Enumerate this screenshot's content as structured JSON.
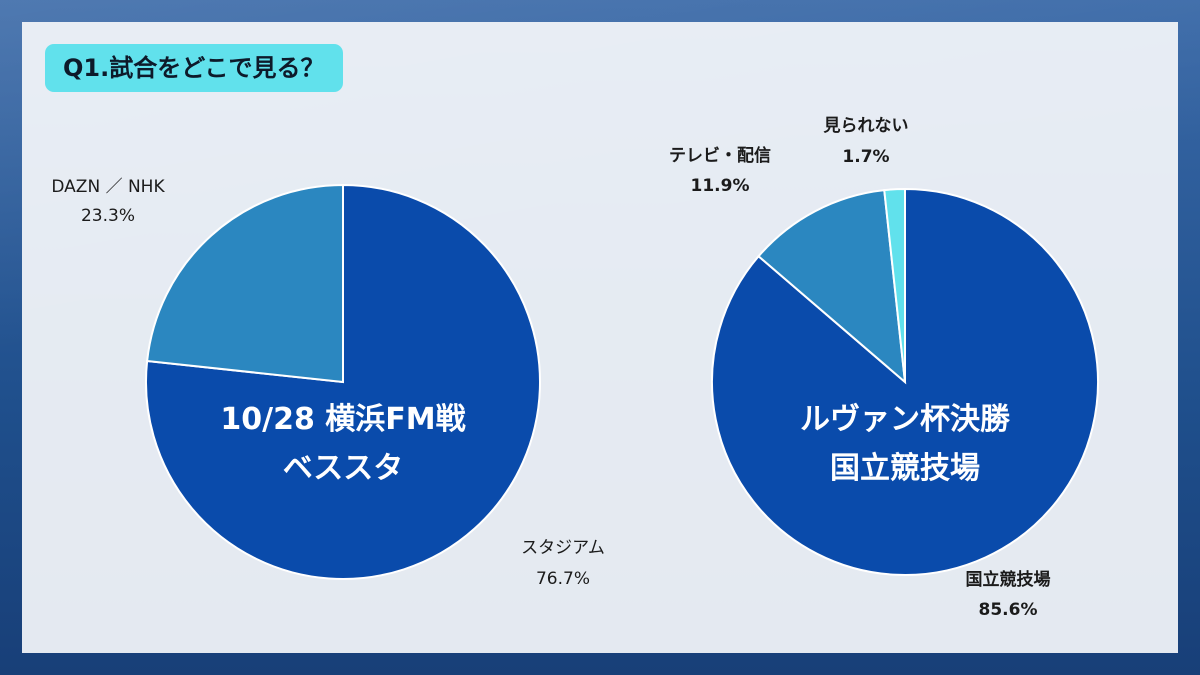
{
  "question": "Q1.試合をどこで見る？",
  "chart_data": [
    {
      "type": "pie",
      "center_lines": [
        "10/28  横浜FM戦",
        "ベススタ"
      ],
      "series": [
        {
          "label": "スタジアム",
          "value_text": "76.7%",
          "value": 76.7,
          "color": "#0a4bab"
        },
        {
          "label": "DAZN ／ NHK",
          "value_text": "23.3%",
          "value": 23.3,
          "color": "#2b87c0"
        }
      ]
    },
    {
      "type": "pie",
      "center_lines": [
        "ルヴァン杯決勝",
        "国立競技場"
      ],
      "series": [
        {
          "label": "国立競技場",
          "value_text": "85.6%",
          "value": 85.6,
          "color": "#0a4bab"
        },
        {
          "label": "テレビ・配信",
          "value_text": "11.9%",
          "value": 11.9,
          "color": "#2b87c0"
        },
        {
          "label": "見られない",
          "value_text": "1.7%",
          "value": 1.7,
          "color": "#61e1ec"
        }
      ]
    }
  ]
}
